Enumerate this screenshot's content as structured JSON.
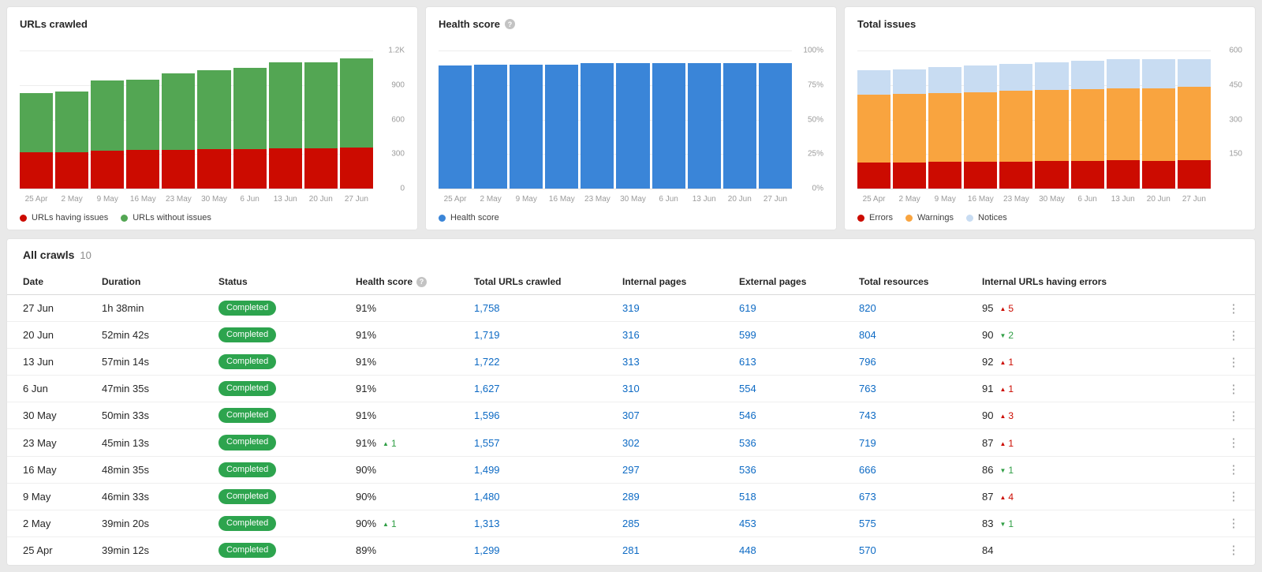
{
  "chart_data": [
    {
      "type": "bar",
      "stacked": true,
      "title": "URLs crawled",
      "x": [
        "25 Apr",
        "2 May",
        "9 May",
        "16 May",
        "23 May",
        "30 May",
        "6 Jun",
        "13 Jun",
        "20 Jun",
        "27 Jun"
      ],
      "y_max": 1200,
      "y_ticks": [
        "1.2K",
        "900",
        "600",
        "300",
        "0"
      ],
      "legend_position": "bottom",
      "grid": true,
      "series": [
        {
          "name": "URLs having issues",
          "color": "#cc0b00",
          "values": [
            315,
            318,
            330,
            333,
            338,
            342,
            345,
            350,
            348,
            355
          ]
        },
        {
          "name": "URLs without issues",
          "color": "#53a653",
          "values": [
            515,
            527,
            610,
            612,
            662,
            688,
            705,
            745,
            752,
            775
          ]
        }
      ]
    },
    {
      "type": "bar",
      "stacked": false,
      "title": "Health score",
      "x": [
        "25 Apr",
        "2 May",
        "9 May",
        "16 May",
        "23 May",
        "30 May",
        "6 Jun",
        "13 Jun",
        "20 Jun",
        "27 Jun"
      ],
      "y_max": 100,
      "y_ticks": [
        "100%",
        "75%",
        "50%",
        "25%",
        "0%"
      ],
      "legend_position": "bottom",
      "grid": true,
      "series": [
        {
          "name": "Health score",
          "color": "#3a85d8",
          "values": [
            89,
            90,
            90,
            90,
            91,
            91,
            91,
            91,
            91,
            91
          ]
        }
      ]
    },
    {
      "type": "bar",
      "stacked": true,
      "title": "Total issues",
      "x": [
        "25 Apr",
        "2 May",
        "9 May",
        "16 May",
        "23 May",
        "30 May",
        "6 Jun",
        "13 Jun",
        "20 Jun",
        "27 Jun"
      ],
      "y_max": 600,
      "y_ticks": [
        "600",
        "450",
        "300",
        "150",
        ""
      ],
      "legend_position": "bottom",
      "grid": true,
      "series": [
        {
          "name": "Errors",
          "color": "#cc0b00",
          "values": [
            113,
            112,
            116,
            115,
            117,
            119,
            120,
            122,
            120,
            124
          ]
        },
        {
          "name": "Warnings",
          "color": "#f9a43f",
          "values": [
            295,
            298,
            300,
            305,
            308,
            310,
            312,
            315,
            316,
            318
          ]
        },
        {
          "name": "Notices",
          "color": "#c8dcf2",
          "values": [
            105,
            108,
            112,
            115,
            118,
            120,
            122,
            125,
            126,
            120
          ]
        }
      ]
    }
  ],
  "table": {
    "title": "All crawls",
    "count": "10",
    "columns": [
      "Date",
      "Duration",
      "Status",
      "Health score",
      "Total URLs crawled",
      "Internal pages",
      "External pages",
      "Total resources",
      "Internal URLs having errors"
    ],
    "rows": [
      {
        "date": "27 Jun",
        "duration": "1h 38min",
        "status": "Completed",
        "health": "91%",
        "health_change": null,
        "urls_crawled": "1,758",
        "internal_pages": "319",
        "external_pages": "619",
        "total_resources": "820",
        "errors": "95",
        "errors_change": {
          "arrow": "up",
          "value": "5",
          "tone": "bad"
        }
      },
      {
        "date": "20 Jun",
        "duration": "52min 42s",
        "status": "Completed",
        "health": "91%",
        "health_change": null,
        "urls_crawled": "1,719",
        "internal_pages": "316",
        "external_pages": "599",
        "total_resources": "804",
        "errors": "90",
        "errors_change": {
          "arrow": "down",
          "value": "2",
          "tone": "good"
        }
      },
      {
        "date": "13 Jun",
        "duration": "57min 14s",
        "status": "Completed",
        "health": "91%",
        "health_change": null,
        "urls_crawled": "1,722",
        "internal_pages": "313",
        "external_pages": "613",
        "total_resources": "796",
        "errors": "92",
        "errors_change": {
          "arrow": "up",
          "value": "1",
          "tone": "bad"
        }
      },
      {
        "date": "6 Jun",
        "duration": "47min 35s",
        "status": "Completed",
        "health": "91%",
        "health_change": null,
        "urls_crawled": "1,627",
        "internal_pages": "310",
        "external_pages": "554",
        "total_resources": "763",
        "errors": "91",
        "errors_change": {
          "arrow": "up",
          "value": "1",
          "tone": "bad"
        }
      },
      {
        "date": "30 May",
        "duration": "50min 33s",
        "status": "Completed",
        "health": "91%",
        "health_change": null,
        "urls_crawled": "1,596",
        "internal_pages": "307",
        "external_pages": "546",
        "total_resources": "743",
        "errors": "90",
        "errors_change": {
          "arrow": "up",
          "value": "3",
          "tone": "bad"
        }
      },
      {
        "date": "23 May",
        "duration": "45min 13s",
        "status": "Completed",
        "health": "91%",
        "health_change": {
          "arrow": "up",
          "value": "1",
          "tone": "good"
        },
        "urls_crawled": "1,557",
        "internal_pages": "302",
        "external_pages": "536",
        "total_resources": "719",
        "errors": "87",
        "errors_change": {
          "arrow": "up",
          "value": "1",
          "tone": "bad"
        }
      },
      {
        "date": "16 May",
        "duration": "48min 35s",
        "status": "Completed",
        "health": "90%",
        "health_change": null,
        "urls_crawled": "1,499",
        "internal_pages": "297",
        "external_pages": "536",
        "total_resources": "666",
        "errors": "86",
        "errors_change": {
          "arrow": "down",
          "value": "1",
          "tone": "good"
        }
      },
      {
        "date": "9 May",
        "duration": "46min 33s",
        "status": "Completed",
        "health": "90%",
        "health_change": null,
        "urls_crawled": "1,480",
        "internal_pages": "289",
        "external_pages": "518",
        "total_resources": "673",
        "errors": "87",
        "errors_change": {
          "arrow": "up",
          "value": "4",
          "tone": "bad"
        }
      },
      {
        "date": "2 May",
        "duration": "39min 20s",
        "status": "Completed",
        "health": "90%",
        "health_change": {
          "arrow": "up",
          "value": "1",
          "tone": "good"
        },
        "urls_crawled": "1,313",
        "internal_pages": "285",
        "external_pages": "453",
        "total_resources": "575",
        "errors": "83",
        "errors_change": {
          "arrow": "down",
          "value": "1",
          "tone": "good"
        }
      },
      {
        "date": "25 Apr",
        "duration": "39min 12s",
        "status": "Completed",
        "health": "89%",
        "health_change": null,
        "urls_crawled": "1,299",
        "internal_pages": "281",
        "external_pages": "448",
        "total_resources": "570",
        "errors": "84",
        "errors_change": null
      }
    ]
  }
}
